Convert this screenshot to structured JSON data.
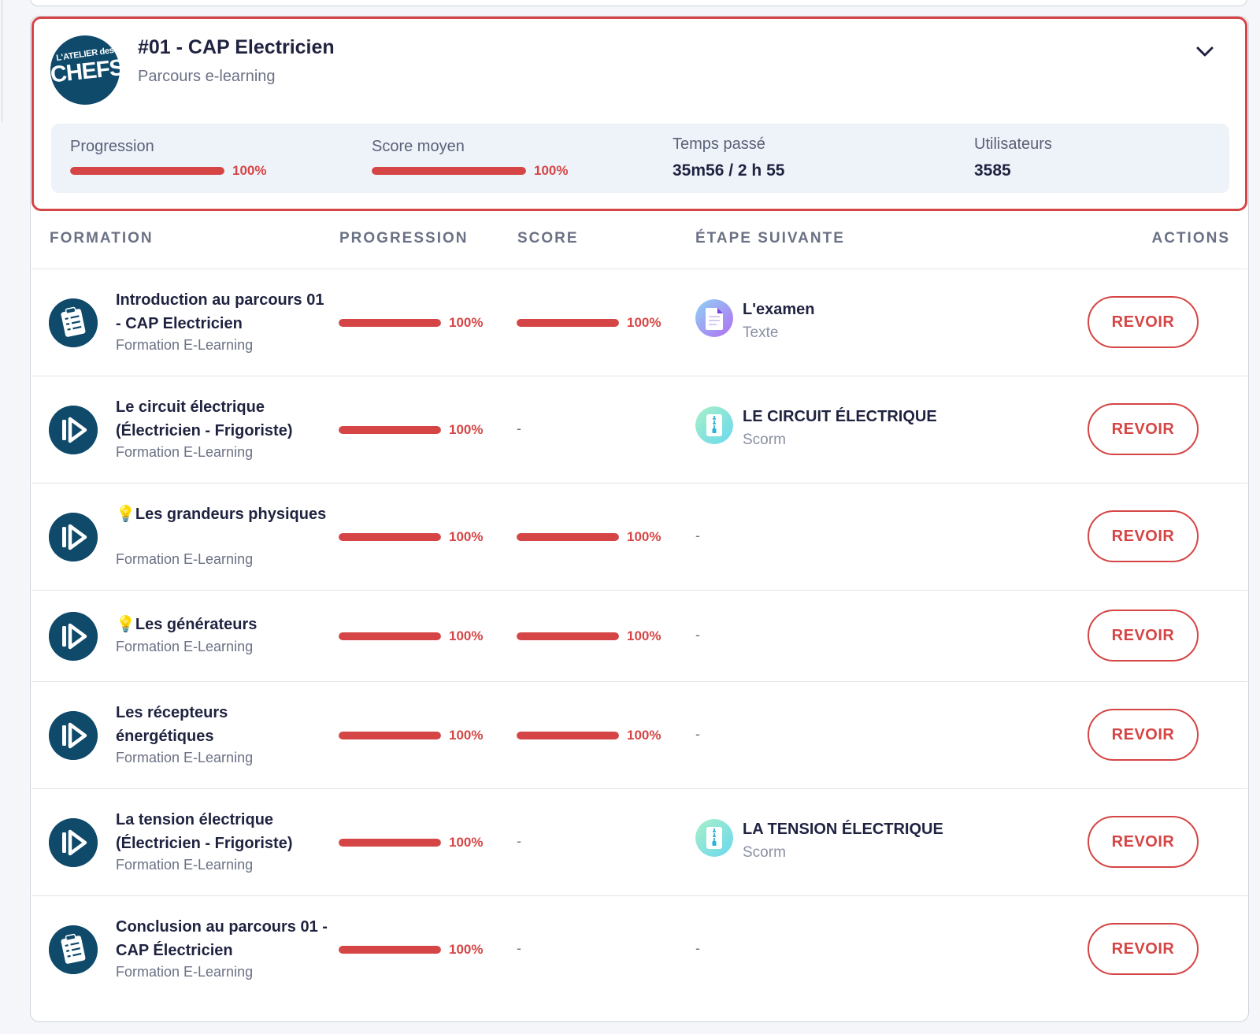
{
  "course": {
    "logo_text_top": "L'ATELIER des",
    "logo_text_main": "CHEFS",
    "title": "#01 - CAP Electricien",
    "subtitle": "Parcours e-learning",
    "stats": {
      "progression": {
        "label": "Progression",
        "value": "100%",
        "fraction": 1.0
      },
      "score": {
        "label": "Score moyen",
        "value": "100%",
        "fraction": 1.0
      },
      "time": {
        "label": "Temps passé",
        "value": "35m56 / 2 h 55"
      },
      "users": {
        "label": "Utilisateurs",
        "value": "3585"
      }
    }
  },
  "table": {
    "headers": {
      "formation": "FORMATION",
      "progression": "PROGRESSION",
      "score": "SCORE",
      "next_step": "ÉTAPE SUIVANTE",
      "actions": "ACTIONS"
    },
    "rows": [
      {
        "icon": "checklist-icon",
        "title": "Introduction au parcours 01 - CAP Electricien",
        "subtitle": "Formation E-Learning",
        "progress": "100%",
        "progress_fraction": 1.0,
        "score": "100%",
        "score_fraction": 1.0,
        "next_title": "L'examen",
        "next_type": "Texte",
        "next_icon": "document-icon",
        "action": "REVOIR"
      },
      {
        "icon": "play-icon",
        "title": "Le circuit électrique (Électricien - Frigoriste)",
        "subtitle": "Formation E-Learning",
        "progress": "100%",
        "progress_fraction": 1.0,
        "score": "-",
        "next_title": "LE CIRCUIT ÉLECTRIQUE",
        "next_type": "Scorm",
        "next_icon": "zip-file-icon",
        "action": "REVOIR"
      },
      {
        "icon": "play-icon",
        "title": "💡Les grandeurs physiques",
        "subtitle": "Formation E-Learning",
        "progress": "100%",
        "progress_fraction": 1.0,
        "score": "100%",
        "score_fraction": 1.0,
        "next_step": "-",
        "action": "REVOIR"
      },
      {
        "icon": "play-icon",
        "title": "💡Les générateurs",
        "subtitle": "Formation E-Learning",
        "progress": "100%",
        "progress_fraction": 1.0,
        "score": "100%",
        "score_fraction": 1.0,
        "next_step": "-",
        "action": "REVOIR"
      },
      {
        "icon": "play-icon",
        "title": "Les récepteurs énergétiques",
        "subtitle": "Formation E-Learning",
        "progress": "100%",
        "progress_fraction": 1.0,
        "score": "100%",
        "score_fraction": 1.0,
        "next_step": "-",
        "action": "REVOIR"
      },
      {
        "icon": "play-icon",
        "title": "La tension électrique (Électricien - Frigoriste)",
        "subtitle": "Formation E-Learning",
        "progress": "100%",
        "progress_fraction": 1.0,
        "score": "-",
        "next_title": "LA TENSION ÉLECTRIQUE",
        "next_type": "Scorm",
        "next_icon": "zip-file-icon",
        "action": "REVOIR"
      },
      {
        "icon": "checklist-icon",
        "title": "Conclusion au parcours 01 - CAP Électricien",
        "subtitle": "Formation E-Learning",
        "progress": "100%",
        "progress_fraction": 1.0,
        "score": "-",
        "next_step": "-",
        "action": "REVOIR"
      }
    ]
  },
  "colors": {
    "accent": "#d64545",
    "icon_bg": "#0f4a6b",
    "stats_bg": "#eef2f9"
  }
}
